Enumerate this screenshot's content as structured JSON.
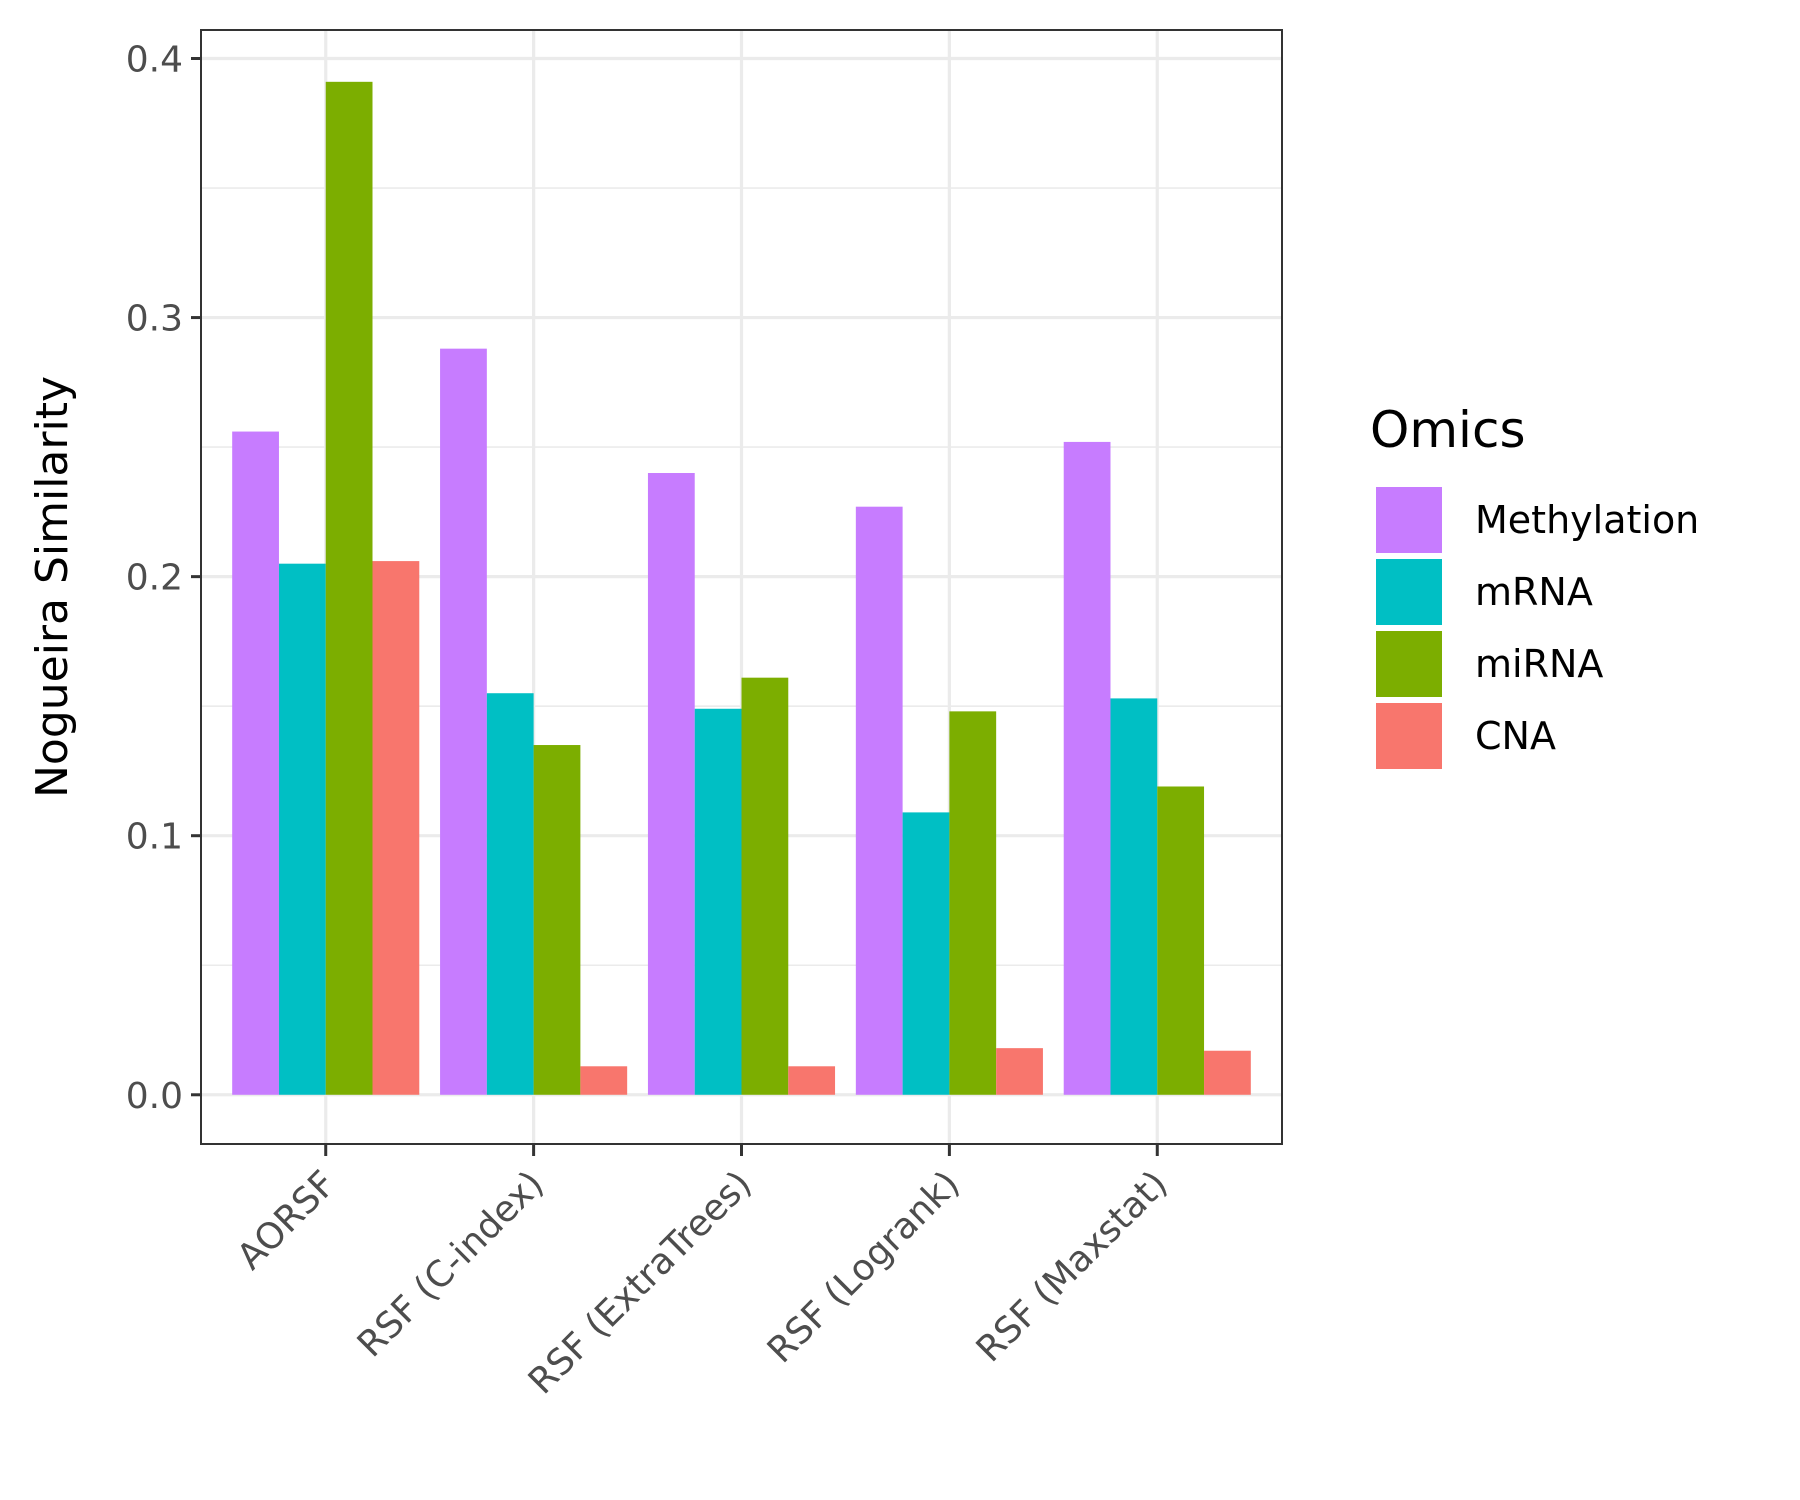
{
  "chart_data": {
    "type": "bar",
    "categories": [
      "AORSF",
      "RSF (C-index)",
      "RSF (ExtraTrees)",
      "RSF (Logrank)",
      "RSF (Maxstat)"
    ],
    "series": [
      {
        "name": "Methylation",
        "color": "#C77CFF",
        "values": [
          0.256,
          0.288,
          0.24,
          0.227,
          0.252
        ]
      },
      {
        "name": "mRNA",
        "color": "#00BFC4",
        "values": [
          0.205,
          0.155,
          0.149,
          0.109,
          0.153
        ]
      },
      {
        "name": "miRNA",
        "color": "#7CAE00",
        "values": [
          0.391,
          0.135,
          0.161,
          0.148,
          0.119
        ]
      },
      {
        "name": "CNA",
        "color": "#F8766D",
        "values": [
          0.206,
          0.011,
          0.011,
          0.018,
          0.017
        ]
      }
    ],
    "title": "",
    "xlabel": "",
    "ylabel": "Nogueira Similarity",
    "ylim": [
      -0.019,
      0.411
    ],
    "yticks": [
      "0.0",
      "0.1",
      "0.2",
      "0.3",
      "0.4"
    ],
    "grid": true,
    "legend": {
      "title": "Omics",
      "position": "right"
    }
  }
}
